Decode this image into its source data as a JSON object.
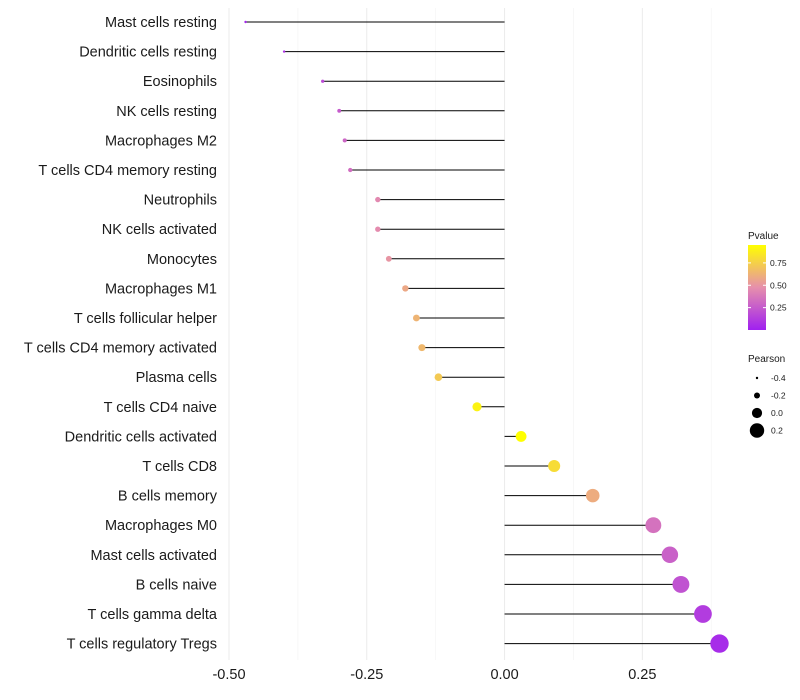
{
  "chart_data": {
    "type": "lollipop",
    "categories": [
      "Mast cells resting",
      "Dendritic cells resting",
      "Eosinophils",
      "NK cells resting",
      "Macrophages M2",
      "T cells CD4 memory resting",
      "Neutrophils",
      "NK cells activated",
      "Monocytes",
      "Macrophages M1",
      "T cells follicular helper",
      "T cells CD4 memory activated",
      "Plasma cells",
      "T cells CD4 naive",
      "Dendritic cells activated",
      "T cells CD8",
      "B cells memory",
      "Macrophages M0",
      "Mast cells activated",
      "B cells naive",
      "T cells gamma delta",
      "T cells regulatory  Tregs"
    ],
    "pearson": [
      -0.47,
      -0.4,
      -0.33,
      -0.3,
      -0.29,
      -0.28,
      -0.23,
      -0.23,
      -0.21,
      -0.18,
      -0.16,
      -0.15,
      -0.12,
      -0.05,
      0.03,
      0.09,
      0.16,
      0.27,
      0.3,
      0.32,
      0.36,
      0.39
    ],
    "pvalue": [
      0.03,
      0.08,
      0.18,
      0.25,
      0.3,
      0.33,
      0.45,
      0.46,
      0.5,
      0.58,
      0.63,
      0.65,
      0.72,
      0.9,
      0.97,
      0.8,
      0.6,
      0.35,
      0.28,
      0.22,
      0.12,
      0.05
    ],
    "xlim": [
      -0.5,
      0.4
    ],
    "x_ticks": [
      -0.5,
      -0.25,
      0.0,
      0.25
    ],
    "x_tick_labels": [
      "-0.50",
      "-0.25",
      "0.00",
      "0.25"
    ],
    "xlabel": "",
    "ylabel": "",
    "grid": true,
    "color_scale": {
      "low": "#a020f0",
      "mid": "#e68fac",
      "high": "#ffff00"
    },
    "segment_color": "#000000",
    "legend_color": {
      "title": "Pvalue",
      "ticks": [
        0.25,
        0.5,
        0.75
      ],
      "tick_labels": [
        "0.25",
        "0.50",
        "0.75"
      ],
      "range": [
        0.0,
        0.95
      ]
    },
    "legend_size": {
      "title": "Pearson",
      "values": [
        -0.4,
        -0.2,
        0.0,
        0.2
      ],
      "labels": [
        "-0.4",
        "-0.2",
        "0.0",
        "0.2"
      ]
    },
    "legend_position": "right"
  }
}
